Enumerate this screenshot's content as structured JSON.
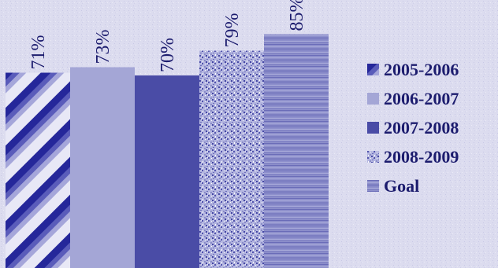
{
  "chart_data": {
    "type": "bar",
    "categories": [
      "2005-2006",
      "2006-2007",
      "2007-2008",
      "2008-2009",
      "Goal"
    ],
    "values": [
      71,
      73,
      70,
      79,
      85
    ],
    "value_labels": [
      "71%",
      "73%",
      "70%",
      "79%",
      "85%"
    ],
    "legend_position": "right",
    "grid": false,
    "colors": {
      "background": "#dcdcef",
      "text": "#1c1c6e",
      "series": [
        "#3a3ca6",
        "#a4a6d6",
        "#4a4ca6",
        "#7a7cc4",
        "#8a8cc8"
      ]
    },
    "legend": [
      {
        "label": "2005-2006",
        "icon": "diagonal-stripe-swatch"
      },
      {
        "label": "2006-2007",
        "icon": "solid-light-swatch"
      },
      {
        "label": "2007-2008",
        "icon": "solid-dark-swatch"
      },
      {
        "label": "2008-2009",
        "icon": "speckled-swatch"
      },
      {
        "label": "Goal",
        "icon": "horizontal-line-swatch"
      }
    ]
  }
}
